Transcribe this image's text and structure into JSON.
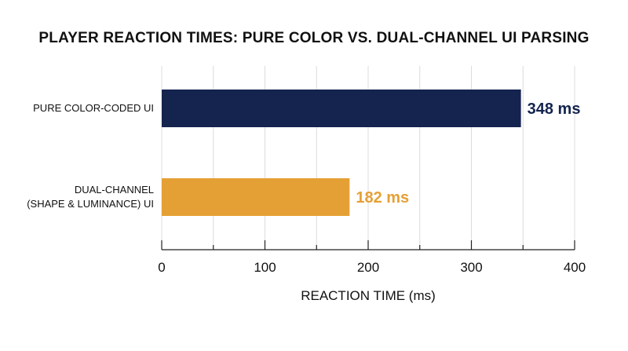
{
  "chart_data": {
    "type": "bar",
    "orientation": "horizontal",
    "title": "PLAYER REACTION TIMES: PURE COLOR VS. DUAL-CHANNEL UI PARSING",
    "xlabel": "REACTION TIME (ms)",
    "ylabel": "",
    "xlim": [
      0,
      400
    ],
    "xticks": [
      0,
      100,
      200,
      300,
      400
    ],
    "grid": "vertical",
    "legend": "none",
    "categories": [
      [
        "PURE COLOR-CODED UI"
      ],
      [
        "DUAL-CHANNEL",
        "(SHAPE & LUMINANCE) UI"
      ]
    ],
    "values": [
      348,
      182
    ],
    "value_labels": [
      "348 ms",
      "182 ms"
    ],
    "colors": [
      "#14244f",
      "#e5a035"
    ]
  }
}
